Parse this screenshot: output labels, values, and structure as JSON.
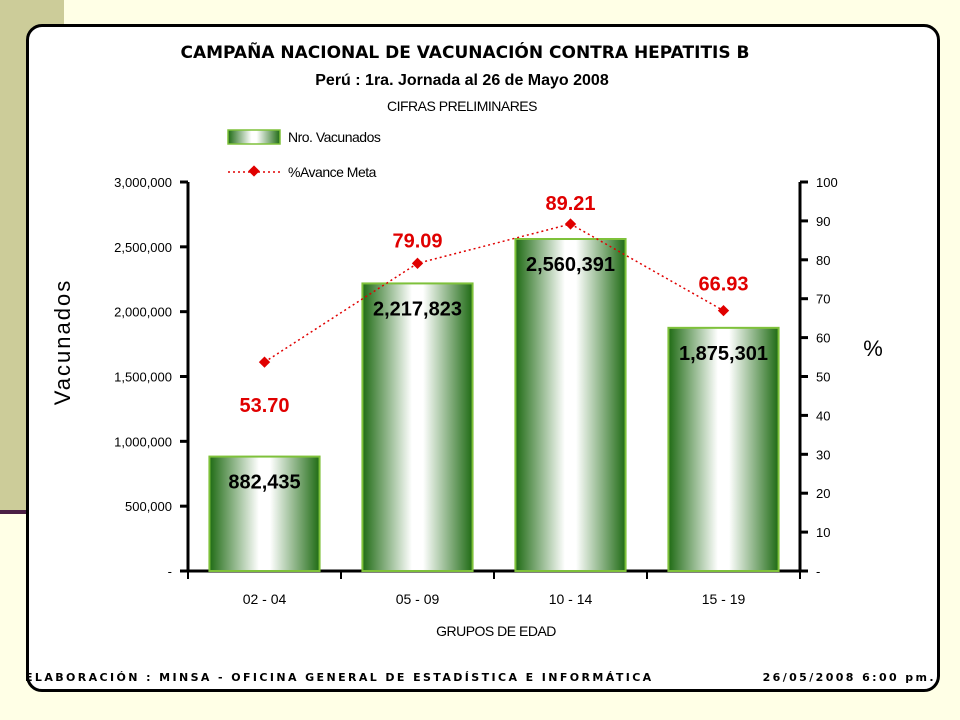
{
  "chart_data": {
    "type": "bar",
    "title": "CAMPAÑA NACIONAL DE VACUNACIÓN CONTRA HEPATITIS B",
    "subtitle": "Perú : 1ra. Jornada al 26 de Mayo 2008",
    "subtitle2": "CIFRAS PRELIMINARES",
    "xlabel": "GRUPOS DE EDAD",
    "ylabel": "Vacunados",
    "y2label": "%",
    "categories": [
      "02 - 04",
      "05 - 09",
      "10 - 14",
      "15 - 19"
    ],
    "ylim": [
      0,
      3000000
    ],
    "y2lim": [
      0,
      100
    ],
    "yticks": [
      "-",
      "500,000",
      "1,000,000",
      "1,500,000",
      "2,000,000",
      "2,500,000",
      "3,000,000"
    ],
    "y2ticks": [
      "-",
      "10",
      "20",
      "30",
      "40",
      "50",
      "60",
      "70",
      "80",
      "90",
      "100"
    ],
    "legend_position": "top-left",
    "series": [
      {
        "name": "Nro. Vacunados",
        "kind": "bar",
        "axis": "left",
        "values": [
          882435,
          2217823,
          2560391,
          1875301
        ],
        "labels": [
          "882,435",
          "2,217,823",
          "2,560,391",
          "1,875,301"
        ],
        "color": "#2e7d1a"
      },
      {
        "name": "%Avance Meta",
        "kind": "line",
        "axis": "right",
        "values": [
          53.7,
          79.09,
          89.21,
          66.93
        ],
        "labels": [
          "53.70",
          "79.09",
          "89.21",
          "66.93"
        ],
        "color": "#e00000"
      }
    ]
  },
  "footer": {
    "source": "ELABORACIÓN : MINSA - OFICINA GENERAL DE ESTADÍSTICA E INFORMÁTICA",
    "datetime": "26/05/2008   6:00 pm."
  }
}
